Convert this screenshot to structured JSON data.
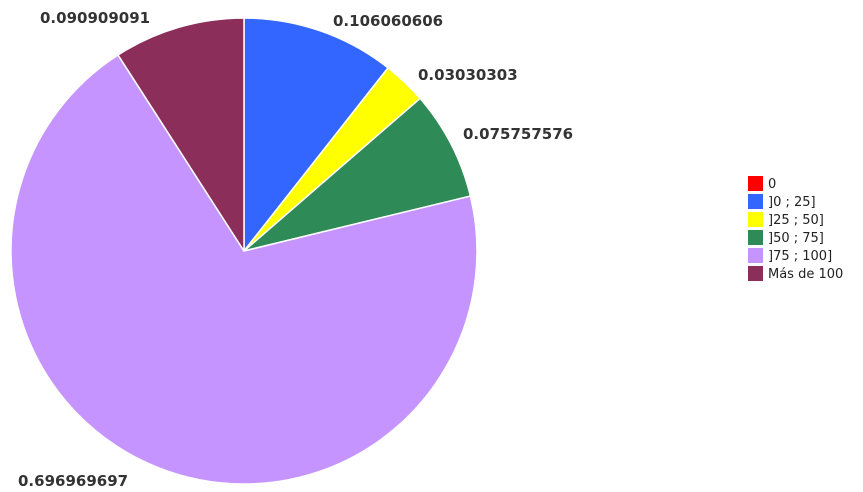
{
  "chart_data": {
    "type": "pie",
    "legend_position": "right",
    "categories": [
      "0",
      "]0 ; 25]",
      "]25 ; 50]",
      "]50 ; 75]",
      "]75 ; 100]",
      "Más de 100"
    ],
    "values": [
      0,
      0.106060606,
      0.03030303,
      0.075757576,
      0.696969697,
      0.090909091
    ],
    "data_labels": [
      "",
      "0.106060606",
      "0.03030303",
      "0.075757576",
      "0.696969697",
      "0.090909091"
    ],
    "colors": [
      "#ff0000",
      "#3366ff",
      "#ffff00",
      "#2e8b57",
      "#c594ff",
      "#8b2e5a"
    ]
  }
}
